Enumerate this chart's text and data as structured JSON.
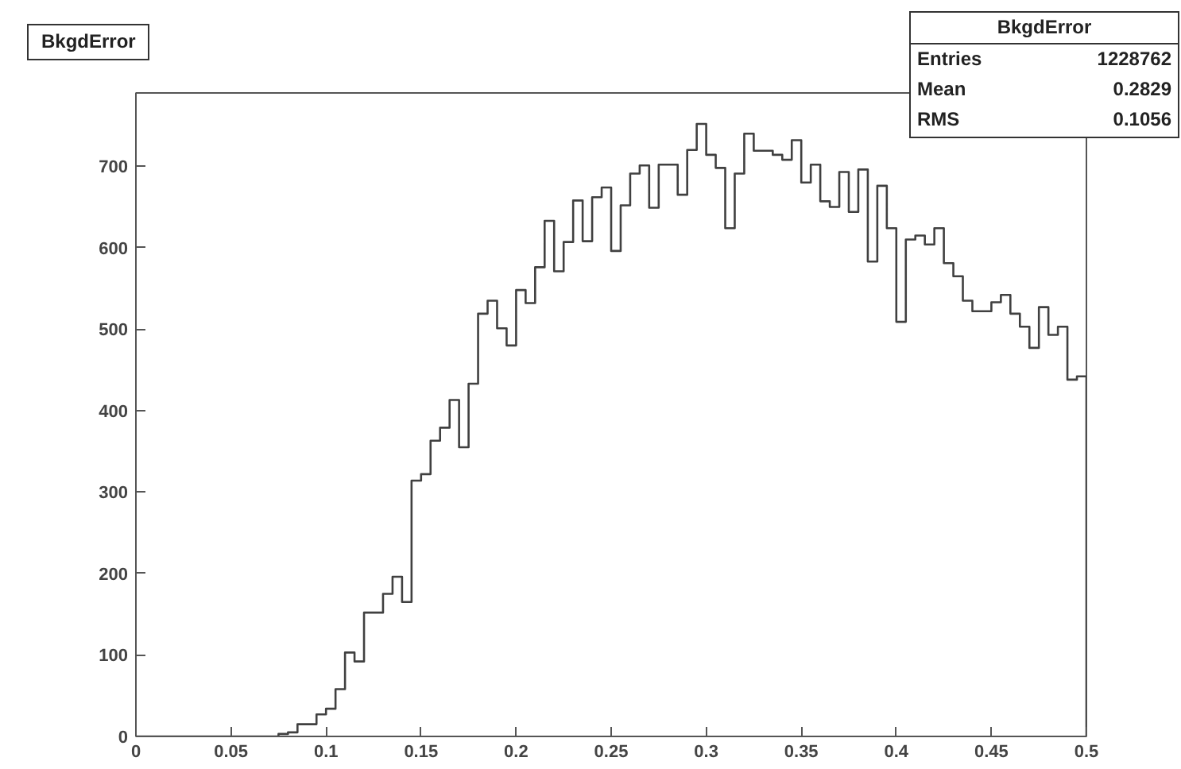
{
  "chart_data": {
    "type": "histogram",
    "title": "BkgdError",
    "bins": [
      0,
      0.005,
      0.01,
      0.015,
      0.02,
      0.025,
      0.03,
      0.035,
      0.04,
      0.045,
      0.05,
      0.055,
      0.06,
      0.065,
      0.07,
      0.075,
      0.08,
      0.085,
      0.09,
      0.095,
      0.1,
      0.105,
      0.11,
      0.115,
      0.12,
      0.125,
      0.13,
      0.135,
      0.14,
      0.145,
      0.15,
      0.155,
      0.16,
      0.165,
      0.17,
      0.175,
      0.18,
      0.185,
      0.19,
      0.195,
      0.2,
      0.205,
      0.21,
      0.215,
      0.22,
      0.225,
      0.23,
      0.235,
      0.24,
      0.245,
      0.25,
      0.255,
      0.26,
      0.265,
      0.27,
      0.275,
      0.28,
      0.285,
      0.29,
      0.295,
      0.3,
      0.305,
      0.31,
      0.315,
      0.32,
      0.325,
      0.33,
      0.335,
      0.34,
      0.345,
      0.35,
      0.355,
      0.36,
      0.365,
      0.37,
      0.375,
      0.38,
      0.385,
      0.39,
      0.395,
      0.4,
      0.405,
      0.41,
      0.415,
      0.42,
      0.425,
      0.43,
      0.435,
      0.44,
      0.445,
      0.45,
      0.455,
      0.46,
      0.465,
      0.47,
      0.475,
      0.48,
      0.485,
      0.49,
      0.495,
      0.5
    ],
    "values": [
      0,
      0,
      0,
      0,
      0,
      0,
      0,
      0,
      0,
      0,
      0,
      0,
      0,
      0,
      0,
      3,
      5,
      15,
      15,
      27,
      34,
      58,
      103,
      92,
      152,
      152,
      175,
      196,
      165,
      314,
      322,
      363,
      379,
      413,
      355,
      433,
      519,
      535,
      501,
      480,
      548,
      532,
      576,
      633,
      571,
      607,
      658,
      608,
      662,
      674,
      596,
      652,
      691,
      701,
      649,
      702,
      702,
      665,
      720,
      752,
      714,
      698,
      624,
      691,
      740,
      719,
      719,
      714,
      708,
      732,
      680,
      702,
      657,
      650,
      693,
      644,
      696,
      583,
      676,
      624,
      509,
      610,
      615,
      604,
      624,
      581,
      565,
      535,
      522,
      522,
      533,
      542,
      519,
      503,
      477,
      527,
      493,
      503,
      438,
      442
    ],
    "color": "#404040",
    "xlim": [
      0,
      0.5
    ],
    "ylim": [
      0,
      790
    ],
    "xticks": [
      0,
      0.05,
      0.1,
      0.15,
      0.2,
      0.25,
      0.3,
      0.35,
      0.4,
      0.45,
      0.5
    ],
    "yticks": [
      0,
      100,
      200,
      300,
      400,
      500,
      600,
      700
    ],
    "grid": false,
    "annotations": [
      "BkgdError",
      "Entries 1228762",
      "Mean 0.2829",
      "RMS 0.1056"
    ]
  }
}
